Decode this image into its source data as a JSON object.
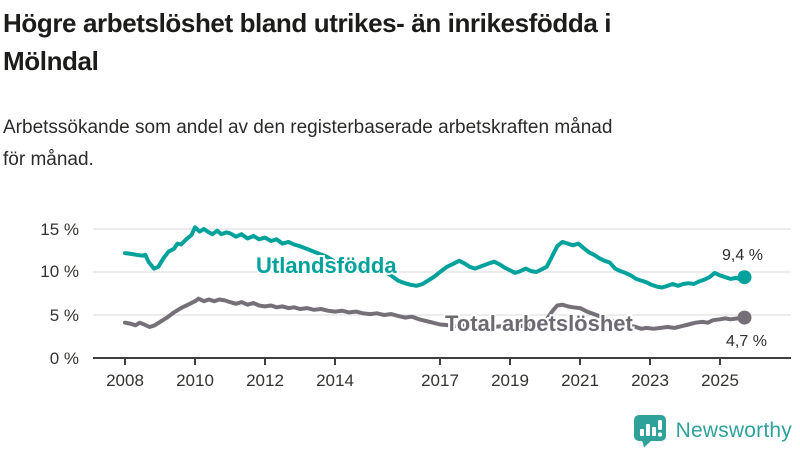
{
  "header": {
    "title_lines": [
      "Högre arbetslöshet bland utrikes- än inrikesfödda i",
      "Mölndal"
    ],
    "subtitle_lines": [
      "Arbetssökande som andel av den registerbaserade arbetskraften månad",
      "för månad."
    ]
  },
  "chart_data": {
    "type": "line",
    "title": "Högre arbetslöshet bland utrikes- än inrikesfödda i Mölndal",
    "subtitle": "Arbetssökande som andel av den registerbaserade arbetskraften månad för månad.",
    "unit": "%",
    "x_range": [
      2008,
      2025.7
    ],
    "y_range": [
      0,
      15
    ],
    "grid": "horizontal",
    "legend_position": "inline-labels",
    "y_tick_labels": [
      "15 %",
      "10 %",
      "5 %",
      "0 %"
    ],
    "y_tick_values": [
      15,
      10,
      5,
      0
    ],
    "x_tick_labels": [
      "2008",
      "2010",
      "2012",
      "2014",
      "2017",
      "2019",
      "2021",
      "2023",
      "2025"
    ],
    "x_tick_values": [
      2008,
      2010,
      2012,
      2014,
      2017,
      2019,
      2021,
      2023,
      2025
    ],
    "series": [
      {
        "name": "Utlandsfödda",
        "color": "#00a29b",
        "end_value_label": "9,4 %",
        "end_value": 9.4,
        "points": [
          [
            2008.0,
            12.2
          ],
          [
            2008.17,
            12.1
          ],
          [
            2008.33,
            12.0
          ],
          [
            2008.5,
            11.9
          ],
          [
            2008.58,
            12.0
          ],
          [
            2008.67,
            11.2
          ],
          [
            2008.83,
            10.4
          ],
          [
            2008.95,
            10.6
          ],
          [
            2009.1,
            11.6
          ],
          [
            2009.25,
            12.4
          ],
          [
            2009.4,
            12.7
          ],
          [
            2009.5,
            13.3
          ],
          [
            2009.6,
            13.2
          ],
          [
            2009.75,
            13.8
          ],
          [
            2009.9,
            14.3
          ],
          [
            2010.0,
            15.2
          ],
          [
            2010.13,
            14.7
          ],
          [
            2010.25,
            15.0
          ],
          [
            2010.4,
            14.6
          ],
          [
            2010.5,
            14.4
          ],
          [
            2010.63,
            14.8
          ],
          [
            2010.75,
            14.4
          ],
          [
            2010.9,
            14.6
          ],
          [
            2011.0,
            14.5
          ],
          [
            2011.17,
            14.1
          ],
          [
            2011.33,
            14.4
          ],
          [
            2011.5,
            13.9
          ],
          [
            2011.67,
            14.2
          ],
          [
            2011.83,
            13.8
          ],
          [
            2012.0,
            14.0
          ],
          [
            2012.17,
            13.6
          ],
          [
            2012.33,
            13.8
          ],
          [
            2012.5,
            13.3
          ],
          [
            2012.67,
            13.5
          ],
          [
            2012.83,
            13.2
          ],
          [
            2013.0,
            13.0
          ],
          [
            2013.25,
            12.6
          ],
          [
            2013.5,
            12.2
          ],
          [
            2013.75,
            11.8
          ],
          [
            2014.0,
            11.2
          ],
          [
            2014.2,
            10.6
          ],
          [
            2014.35,
            10.3
          ],
          [
            2014.5,
            10.5
          ],
          [
            2014.65,
            10.2
          ],
          [
            2014.8,
            10.4
          ],
          [
            2015.0,
            10.2
          ],
          [
            2015.15,
            10.0
          ],
          [
            2015.3,
            10.2
          ],
          [
            2015.45,
            10.0
          ],
          [
            2015.6,
            9.6
          ],
          [
            2015.8,
            9.0
          ],
          [
            2016.0,
            8.7
          ],
          [
            2016.17,
            8.5
          ],
          [
            2016.33,
            8.4
          ],
          [
            2016.5,
            8.6
          ],
          [
            2016.7,
            9.1
          ],
          [
            2016.85,
            9.5
          ],
          [
            2017.0,
            10.0
          ],
          [
            2017.2,
            10.6
          ],
          [
            2017.4,
            11.0
          ],
          [
            2017.55,
            11.3
          ],
          [
            2017.7,
            11.0
          ],
          [
            2017.85,
            10.6
          ],
          [
            2018.0,
            10.4
          ],
          [
            2018.2,
            10.7
          ],
          [
            2018.4,
            11.0
          ],
          [
            2018.55,
            11.2
          ],
          [
            2018.7,
            10.9
          ],
          [
            2018.85,
            10.5
          ],
          [
            2019.0,
            10.2
          ],
          [
            2019.15,
            9.9
          ],
          [
            2019.3,
            10.1
          ],
          [
            2019.45,
            10.4
          ],
          [
            2019.6,
            10.1
          ],
          [
            2019.75,
            10.0
          ],
          [
            2019.9,
            10.3
          ],
          [
            2020.05,
            10.6
          ],
          [
            2020.2,
            11.8
          ],
          [
            2020.35,
            13.0
          ],
          [
            2020.5,
            13.5
          ],
          [
            2020.65,
            13.3
          ],
          [
            2020.8,
            13.1
          ],
          [
            2020.95,
            13.3
          ],
          [
            2021.1,
            12.8
          ],
          [
            2021.25,
            12.3
          ],
          [
            2021.4,
            12.0
          ],
          [
            2021.55,
            11.6
          ],
          [
            2021.7,
            11.3
          ],
          [
            2021.85,
            11.1
          ],
          [
            2022.0,
            10.4
          ],
          [
            2022.15,
            10.1
          ],
          [
            2022.3,
            9.9
          ],
          [
            2022.45,
            9.6
          ],
          [
            2022.6,
            9.2
          ],
          [
            2022.75,
            9.0
          ],
          [
            2022.9,
            8.8
          ],
          [
            2023.05,
            8.5
          ],
          [
            2023.2,
            8.3
          ],
          [
            2023.35,
            8.2
          ],
          [
            2023.5,
            8.4
          ],
          [
            2023.65,
            8.6
          ],
          [
            2023.8,
            8.4
          ],
          [
            2023.95,
            8.6
          ],
          [
            2024.1,
            8.7
          ],
          [
            2024.25,
            8.6
          ],
          [
            2024.4,
            8.9
          ],
          [
            2024.55,
            9.1
          ],
          [
            2024.7,
            9.4
          ],
          [
            2024.85,
            9.9
          ],
          [
            2025.0,
            9.6
          ],
          [
            2025.15,
            9.4
          ],
          [
            2025.3,
            9.2
          ],
          [
            2025.45,
            9.3
          ],
          [
            2025.58,
            9.2
          ],
          [
            2025.7,
            9.4
          ]
        ]
      },
      {
        "name": "Total arbetslöshet",
        "color": "#757078",
        "end_value_label": "4,7 %",
        "end_value": 4.7,
        "points": [
          [
            2008.0,
            4.1
          ],
          [
            2008.15,
            4.0
          ],
          [
            2008.3,
            3.8
          ],
          [
            2008.42,
            4.1
          ],
          [
            2008.55,
            3.9
          ],
          [
            2008.7,
            3.6
          ],
          [
            2008.85,
            3.8
          ],
          [
            2009.0,
            4.2
          ],
          [
            2009.2,
            4.7
          ],
          [
            2009.4,
            5.3
          ],
          [
            2009.6,
            5.8
          ],
          [
            2009.8,
            6.2
          ],
          [
            2010.0,
            6.6
          ],
          [
            2010.1,
            6.9
          ],
          [
            2010.25,
            6.6
          ],
          [
            2010.4,
            6.8
          ],
          [
            2010.55,
            6.6
          ],
          [
            2010.7,
            6.8
          ],
          [
            2010.85,
            6.7
          ],
          [
            2011.0,
            6.5
          ],
          [
            2011.17,
            6.3
          ],
          [
            2011.33,
            6.5
          ],
          [
            2011.5,
            6.2
          ],
          [
            2011.67,
            6.4
          ],
          [
            2011.83,
            6.1
          ],
          [
            2012.0,
            6.0
          ],
          [
            2012.17,
            6.1
          ],
          [
            2012.33,
            5.9
          ],
          [
            2012.5,
            6.0
          ],
          [
            2012.67,
            5.8
          ],
          [
            2012.83,
            5.9
          ],
          [
            2013.0,
            5.7
          ],
          [
            2013.2,
            5.8
          ],
          [
            2013.4,
            5.6
          ],
          [
            2013.6,
            5.7
          ],
          [
            2013.8,
            5.5
          ],
          [
            2014.0,
            5.4
          ],
          [
            2014.2,
            5.5
          ],
          [
            2014.4,
            5.3
          ],
          [
            2014.6,
            5.4
          ],
          [
            2014.8,
            5.2
          ],
          [
            2015.0,
            5.1
          ],
          [
            2015.2,
            5.2
          ],
          [
            2015.4,
            5.0
          ],
          [
            2015.6,
            5.1
          ],
          [
            2015.8,
            4.9
          ],
          [
            2016.0,
            4.7
          ],
          [
            2016.2,
            4.8
          ],
          [
            2016.4,
            4.5
          ],
          [
            2016.6,
            4.3
          ],
          [
            2016.8,
            4.1
          ],
          [
            2017.0,
            3.9
          ],
          [
            2017.25,
            3.8
          ],
          [
            2017.5,
            3.7
          ],
          [
            2017.75,
            3.8
          ],
          [
            2018.0,
            3.6
          ],
          [
            2018.25,
            3.7
          ],
          [
            2018.5,
            3.6
          ],
          [
            2018.75,
            3.7
          ],
          [
            2019.0,
            3.6
          ],
          [
            2019.25,
            3.7
          ],
          [
            2019.5,
            3.8
          ],
          [
            2019.75,
            3.9
          ],
          [
            2020.0,
            4.2
          ],
          [
            2020.2,
            5.4
          ],
          [
            2020.35,
            6.1
          ],
          [
            2020.5,
            6.2
          ],
          [
            2020.65,
            6.0
          ],
          [
            2020.8,
            5.9
          ],
          [
            2021.0,
            5.8
          ],
          [
            2021.2,
            5.4
          ],
          [
            2021.4,
            5.1
          ],
          [
            2021.6,
            4.8
          ],
          [
            2021.8,
            4.5
          ],
          [
            2022.0,
            4.2
          ],
          [
            2022.2,
            4.0
          ],
          [
            2022.4,
            3.8
          ],
          [
            2022.6,
            3.6
          ],
          [
            2022.75,
            3.4
          ],
          [
            2022.9,
            3.5
          ],
          [
            2023.1,
            3.4
          ],
          [
            2023.3,
            3.5
          ],
          [
            2023.5,
            3.6
          ],
          [
            2023.7,
            3.5
          ],
          [
            2023.9,
            3.7
          ],
          [
            2024.1,
            3.9
          ],
          [
            2024.3,
            4.1
          ],
          [
            2024.5,
            4.2
          ],
          [
            2024.65,
            4.1
          ],
          [
            2024.8,
            4.4
          ],
          [
            2025.0,
            4.5
          ],
          [
            2025.15,
            4.6
          ],
          [
            2025.3,
            4.5
          ],
          [
            2025.5,
            4.6
          ],
          [
            2025.7,
            4.7
          ]
        ]
      }
    ]
  },
  "colors": {
    "accent_teal": "#00a29b",
    "line_gray": "#757078",
    "grid": "#d8d8d8",
    "axis": "#3f3f3f",
    "brand": "#2ea19b"
  },
  "footer": {
    "brand": "Newsworthy",
    "logo_icon": "bar-chart-speech-bubble-icon"
  }
}
